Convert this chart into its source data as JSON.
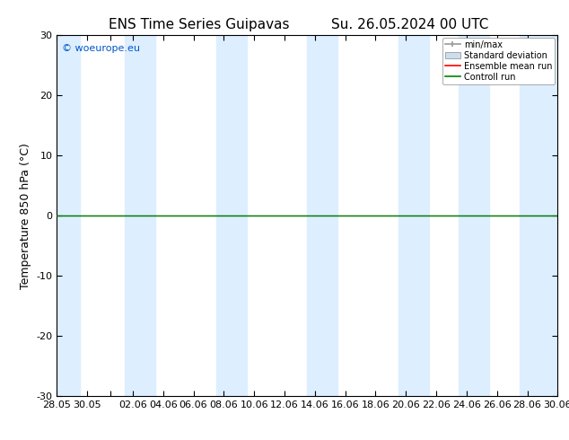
{
  "title_left": "ENS Time Series Guipavas",
  "title_right": "Su. 26.05.2024 00 UTC",
  "ylabel": "Temperature 850 hPa (°C)",
  "watermark": "© woeurope.eu",
  "ylim": [
    -30,
    30
  ],
  "yticks": [
    -30,
    -20,
    -10,
    0,
    10,
    20,
    30
  ],
  "xlim": [
    0,
    33
  ],
  "background_color": "#ffffff",
  "plot_bg_color": "#ffffff",
  "shading_color": "#ddeeff",
  "zero_line_color": "#000000",
  "control_run_color": "#008000",
  "ensemble_mean_color": "#ff0000",
  "control_run_y": -0.5,
  "x_tick_labels": [
    "28.05",
    "30.05",
    "",
    "02.06",
    "04.06",
    "06.06",
    "08.06",
    "10.06",
    "12.06",
    "14.06",
    "16.06",
    "18.06",
    "20.06",
    "22.06",
    "24.06",
    "26.06",
    "28.06",
    "30.06"
  ],
  "x_tick_positions": [
    0,
    2,
    3.5,
    5,
    7,
    9,
    11,
    13,
    15,
    17,
    19,
    21,
    23,
    25,
    27,
    29,
    31,
    33
  ],
  "shading_bands": [
    {
      "x_start": 0.0,
      "x_end": 1.5
    },
    {
      "x_start": 4.5,
      "x_end": 6.5
    },
    {
      "x_start": 10.5,
      "x_end": 12.5
    },
    {
      "x_start": 16.5,
      "x_end": 18.5
    },
    {
      "x_start": 22.5,
      "x_end": 24.5
    },
    {
      "x_start": 26.5,
      "x_end": 28.5
    },
    {
      "x_start": 30.5,
      "x_end": 33.0
    }
  ],
  "legend_labels": [
    "min/max",
    "Standard deviation",
    "Ensemble mean run",
    "Controll run"
  ],
  "legend_colors_line": [
    "#999999",
    "#aabbcc",
    "#ff0000",
    "#008000"
  ],
  "title_fontsize": 11,
  "axis_label_fontsize": 9,
  "tick_fontsize": 8,
  "legend_fontsize": 7,
  "watermark_color": "#0055cc",
  "watermark_fontsize": 8
}
